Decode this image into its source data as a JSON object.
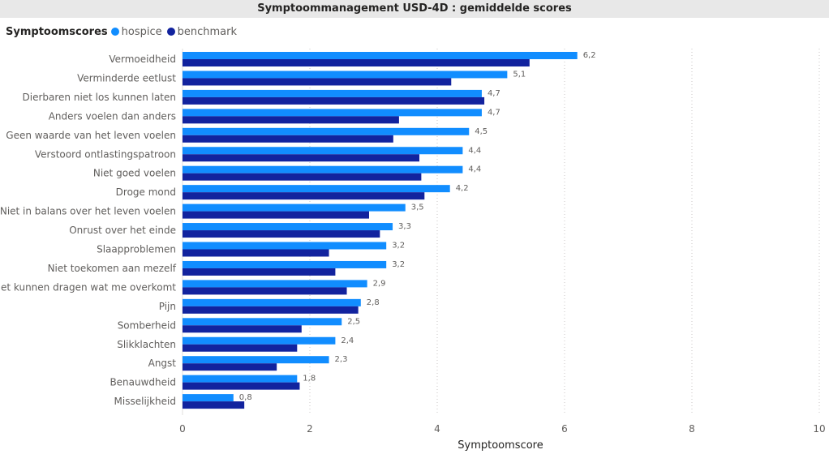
{
  "chart_data": {
    "type": "bar",
    "orientation": "horizontal",
    "title": "Symptoommanagement USD-4D : gemiddelde scores",
    "legend_title": "Symptoomscores",
    "legend_position": "top-left",
    "xlabel": "Symptoomscore",
    "ylabel": "",
    "xlim": [
      0,
      10
    ],
    "x_ticks": [
      0,
      2,
      4,
      6,
      8,
      10
    ],
    "grid": true,
    "categories": [
      "Vermoeidheid",
      "Verminderde eetlust",
      "Dierbaren niet los kunnen laten",
      "Anders voelen dan anders",
      "Geen waarde van het leven voelen",
      "Verstoord ontlastingspatroon",
      "Niet goed voelen",
      "Droge mond",
      "Niet in balans over het leven voelen",
      "Onrust over het einde",
      "Slaapproblemen",
      "Niet toekomen aan mezelf",
      "Niet kunnen dragen wat me overkomt",
      "Pijn",
      "Somberheid",
      "Slikklachten",
      "Angst",
      "Benauwdheid",
      "Misselijkheid"
    ],
    "series": [
      {
        "name": "hospice",
        "color": "#118dff",
        "values": [
          6.2,
          5.1,
          4.7,
          4.7,
          4.5,
          4.4,
          4.4,
          4.2,
          3.5,
          3.3,
          3.2,
          3.2,
          2.9,
          2.8,
          2.5,
          2.4,
          2.3,
          1.8,
          0.8
        ],
        "labels": [
          "6,2",
          "5,1",
          "4,7",
          "4,7",
          "4,5",
          "4,4",
          "4,4",
          "4,2",
          "3,5",
          "3,3",
          "3,2",
          "3,2",
          "2,9",
          "2,8",
          "2,5",
          "2,4",
          "2,3",
          "1,8",
          "0,8"
        ]
      },
      {
        "name": "benchmark",
        "color": "#12239e",
        "values": [
          5.45,
          4.22,
          4.74,
          3.4,
          3.31,
          3.72,
          3.75,
          3.8,
          2.93,
          3.1,
          2.3,
          2.4,
          2.58,
          2.76,
          1.87,
          1.8,
          1.48,
          1.84,
          0.97
        ]
      }
    ]
  }
}
